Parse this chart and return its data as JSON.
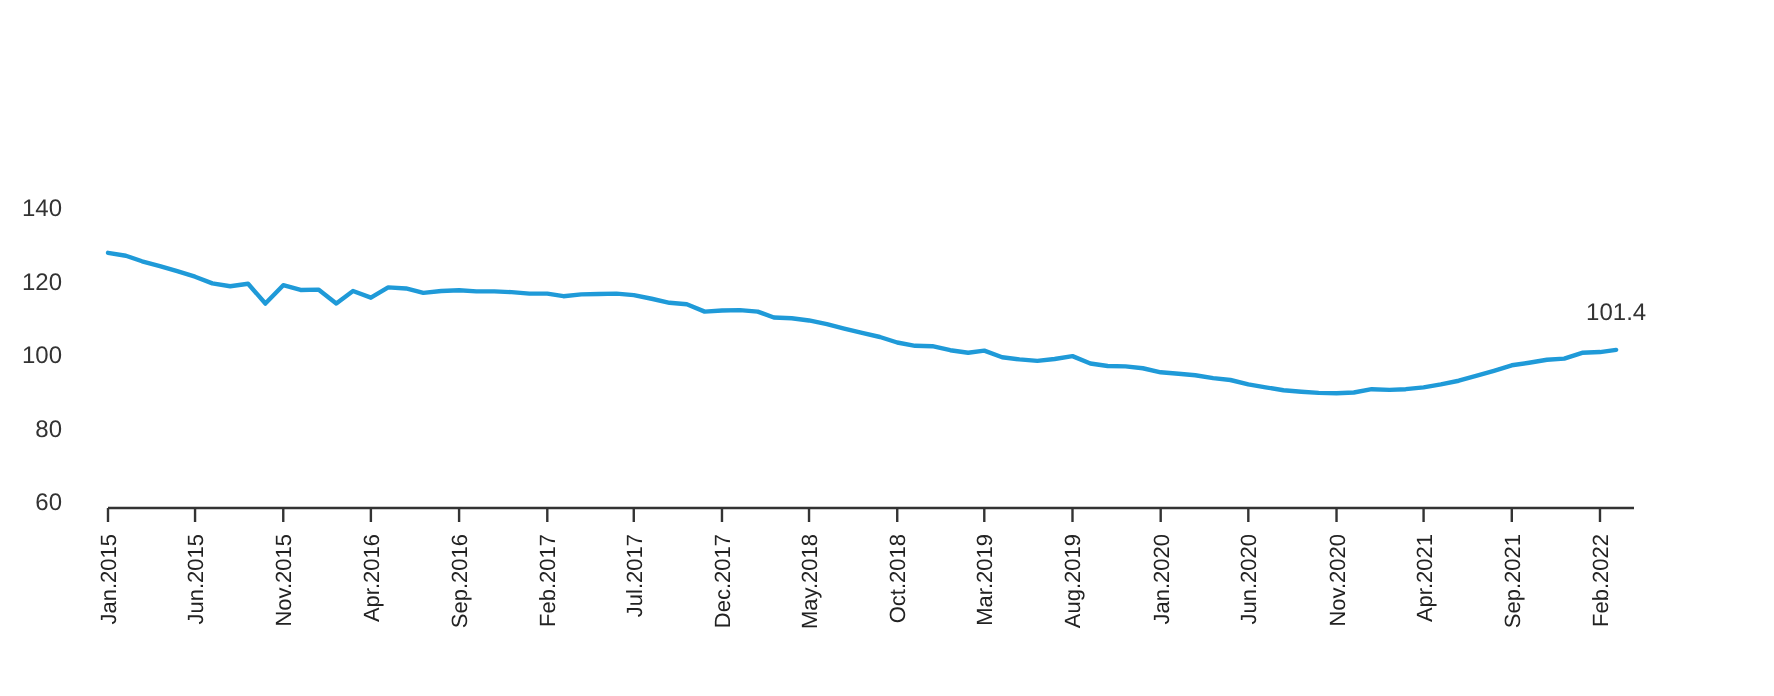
{
  "chart_data": {
    "type": "line",
    "x": [
      "2015-01",
      "2015-02",
      "2015-03",
      "2015-04",
      "2015-05",
      "2015-06",
      "2015-07",
      "2015-08",
      "2015-09",
      "2015-10",
      "2015-11",
      "2015-12",
      "2016-01",
      "2016-02",
      "2016-03",
      "2016-04",
      "2016-05",
      "2016-06",
      "2016-07",
      "2016-08",
      "2016-09",
      "2016-10",
      "2016-11",
      "2016-12",
      "2017-01",
      "2017-02",
      "2017-03",
      "2017-04",
      "2017-05",
      "2017-06",
      "2017-07",
      "2017-08",
      "2017-09",
      "2017-10",
      "2017-11",
      "2017-12",
      "2018-01",
      "2018-02",
      "2018-03",
      "2018-04",
      "2018-05",
      "2018-06",
      "2018-07",
      "2018-08",
      "2018-09",
      "2018-10",
      "2018-11",
      "2018-12",
      "2019-01",
      "2019-02",
      "2019-03",
      "2019-04",
      "2019-05",
      "2019-06",
      "2019-07",
      "2019-08",
      "2019-09",
      "2019-10",
      "2019-11",
      "2019-12",
      "2020-01",
      "2020-02",
      "2020-03",
      "2020-04",
      "2020-05",
      "2020-06",
      "2020-07",
      "2020-08",
      "2020-09",
      "2020-10",
      "2020-11",
      "2020-12",
      "2021-01",
      "2021-02",
      "2021-03",
      "2021-04",
      "2021-05",
      "2021-06",
      "2021-07",
      "2021-08",
      "2021-09",
      "2021-10",
      "2021-11",
      "2021-12",
      "2022-01",
      "2022-02",
      "2022-03"
    ],
    "series": [
      {
        "color": "#1f9ad8",
        "values": [
          127.8,
          127.0,
          125.5,
          124.2,
          122.8,
          121.3,
          119.5,
          118.7,
          119.4,
          114.0,
          119.0,
          117.7,
          117.8,
          114.0,
          117.4,
          115.6,
          118.4,
          118.1,
          116.9,
          117.4,
          117.6,
          117.3,
          117.3,
          117.1,
          116.7,
          116.7,
          116.0,
          116.5,
          116.6,
          116.7,
          116.3,
          115.3,
          114.2,
          113.8,
          111.8,
          112.1,
          112.2,
          111.8,
          110.2,
          110.0,
          109.4,
          108.4,
          107.2,
          106.0,
          104.9,
          103.4,
          102.5,
          102.4,
          101.3,
          100.6,
          101.2,
          99.4,
          98.8,
          98.4,
          98.9,
          99.7,
          97.7,
          97.0,
          96.9,
          96.4,
          95.3,
          94.9,
          94.5,
          93.7,
          93.2,
          92.0,
          91.2,
          90.4,
          90.0,
          89.7,
          89.6,
          89.8,
          90.7,
          90.5,
          90.7,
          91.2,
          92.0,
          93.0,
          94.3,
          95.7,
          97.2,
          97.9,
          98.7,
          99.0,
          100.6,
          100.8,
          101.4
        ]
      }
    ],
    "xlim": [
      "2015-01",
      "2022-04"
    ],
    "xticks": [
      {
        "value": "2015-01",
        "label": "Jan.2015"
      },
      {
        "value": "2015-06",
        "label": "Jun.2015"
      },
      {
        "value": "2015-11",
        "label": "Nov.2015"
      },
      {
        "value": "2016-04",
        "label": "Apr.2016"
      },
      {
        "value": "2016-09",
        "label": "Sep.2016"
      },
      {
        "value": "2017-02",
        "label": "Feb.2017"
      },
      {
        "value": "2017-07",
        "label": "Jul.2017"
      },
      {
        "value": "2017-12",
        "label": "Dec.2017"
      },
      {
        "value": "2018-05",
        "label": "May.2018"
      },
      {
        "value": "2018-10",
        "label": "Oct.2018"
      },
      {
        "value": "2019-03",
        "label": "Mar.2019"
      },
      {
        "value": "2019-08",
        "label": "Aug.2019"
      },
      {
        "value": "2020-01",
        "label": "Jan.2020"
      },
      {
        "value": "2020-06",
        "label": "Jun.2020"
      },
      {
        "value": "2020-11",
        "label": "Nov.2020"
      },
      {
        "value": "2021-04",
        "label": "Apr.2021"
      },
      {
        "value": "2021-09",
        "label": "Sep.2021"
      },
      {
        "value": "2022-02",
        "label": "Feb.2022"
      }
    ],
    "ylim": [
      60,
      140
    ],
    "yticks": [
      60,
      80,
      100,
      120,
      140
    ],
    "annotations": [
      {
        "text": "101.4",
        "x": "2022-03",
        "y": 101.4
      }
    ],
    "grid": false,
    "marker": "none",
    "line_style": "solid"
  }
}
